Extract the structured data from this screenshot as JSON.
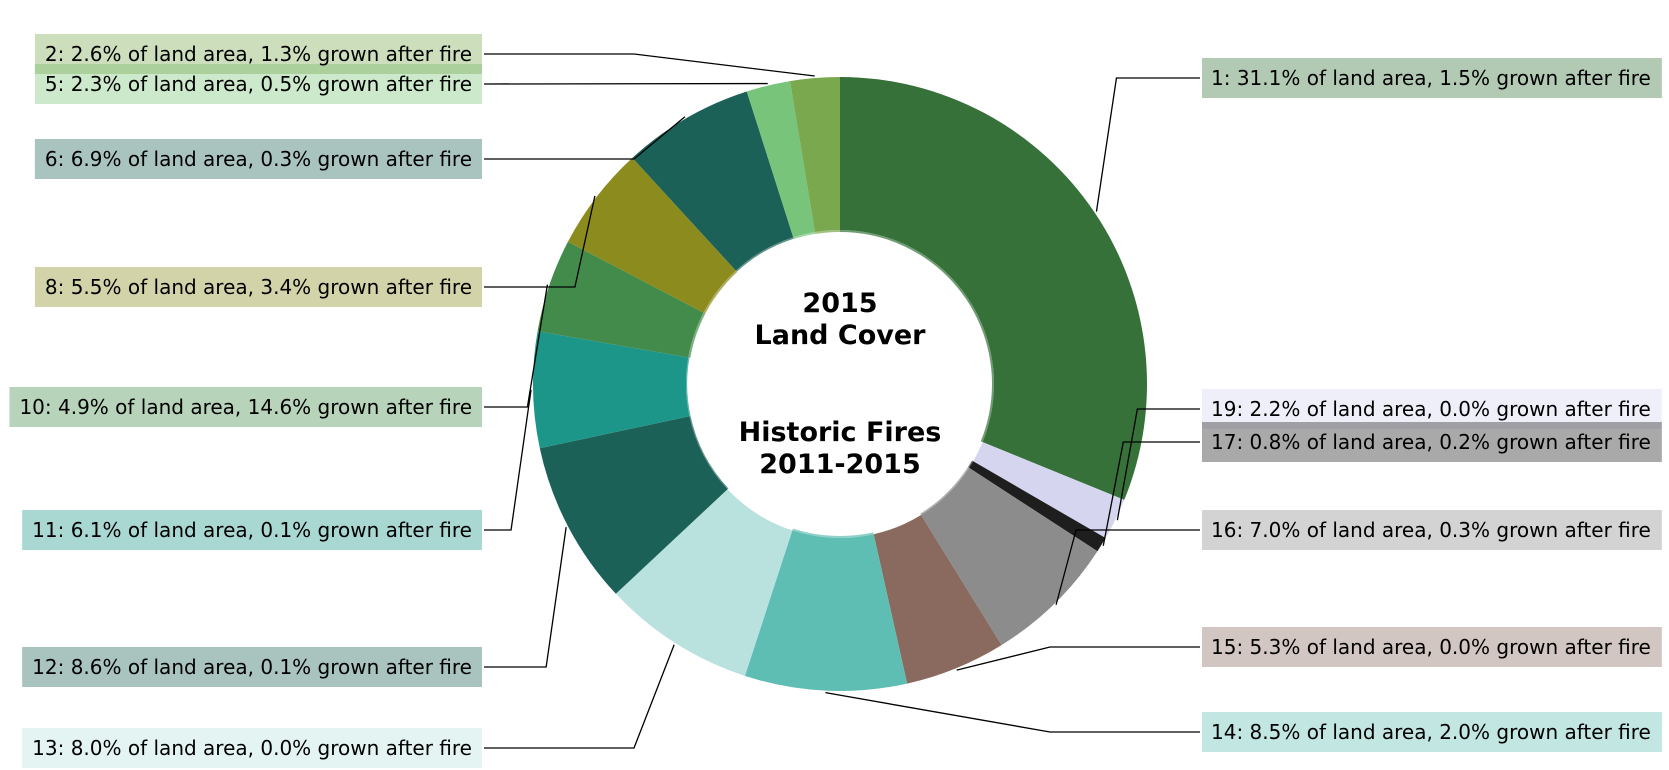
{
  "chart_data": {
    "type": "pie",
    "variant": "donut",
    "title_outer": [
      "2015",
      "Land Cover"
    ],
    "title_inner": [
      "Historic Fires",
      "2011-2015"
    ],
    "land_cover": [
      {
        "id": 1,
        "land_pct": 31.1,
        "grown_pct": 1.5,
        "label": "1: 31.1% of land area, 1.5% grown after fire",
        "color": "#357139"
      },
      {
        "id": 19,
        "land_pct": 2.2,
        "grown_pct": 0.0,
        "label": "19: 2.2% of land area, 0.0% grown after fire",
        "color": "#d5d5f0"
      },
      {
        "id": 17,
        "land_pct": 0.8,
        "grown_pct": 0.2,
        "label": "17: 0.8% of land area, 0.2% grown after fire",
        "color": "#1e1e1e"
      },
      {
        "id": 16,
        "land_pct": 7.0,
        "grown_pct": 0.3,
        "label": "16: 7.0% of land area, 0.3% grown after fire",
        "color": "#8c8c8c"
      },
      {
        "id": 15,
        "land_pct": 5.3,
        "grown_pct": 0.0,
        "label": "15: 5.3% of land area, 0.0% grown after fire",
        "color": "#8a6a5e"
      },
      {
        "id": 14,
        "land_pct": 8.5,
        "grown_pct": 2.0,
        "label": "14: 8.5% of land area, 2.0% grown after fire",
        "color": "#5fbeb4"
      },
      {
        "id": 13,
        "land_pct": 8.0,
        "grown_pct": 0.0,
        "label": "13: 8.0% of land area, 0.0% grown after fire",
        "color": "#b9e2df"
      },
      {
        "id": 12,
        "land_pct": 8.6,
        "grown_pct": 0.1,
        "label": "12: 8.6% of land area, 0.1% grown after fire",
        "color": "#1c6158"
      },
      {
        "id": 11,
        "land_pct": 6.1,
        "grown_pct": 0.1,
        "label": "11: 6.1% of land area, 0.1% grown after fire",
        "color": "#1c9688"
      },
      {
        "id": 10,
        "land_pct": 4.9,
        "grown_pct": 14.6,
        "label": "10: 4.9% of land area, 14.6% grown after fire",
        "color": "#438b4a"
      },
      {
        "id": 8,
        "land_pct": 5.5,
        "grown_pct": 3.4,
        "label": "8: 5.5% of land area, 3.4% grown after fire",
        "color": "#8c8b1e"
      },
      {
        "id": 6,
        "land_pct": 6.9,
        "grown_pct": 0.3,
        "label": "6: 6.9% of land area, 0.3% grown after fire",
        "color": "#1c6158"
      },
      {
        "id": 5,
        "land_pct": 2.3,
        "grown_pct": 0.5,
        "label": "5: 2.3% of land area, 0.5% grown after fire",
        "color": "#78c47a"
      },
      {
        "id": 2,
        "land_pct": 2.6,
        "grown_pct": 1.3,
        "label": "2: 2.6% of land area, 1.3% grown after fire",
        "color": "#7aa84e"
      }
    ],
    "legend_placement": "labels on both sides with leader lines"
  }
}
